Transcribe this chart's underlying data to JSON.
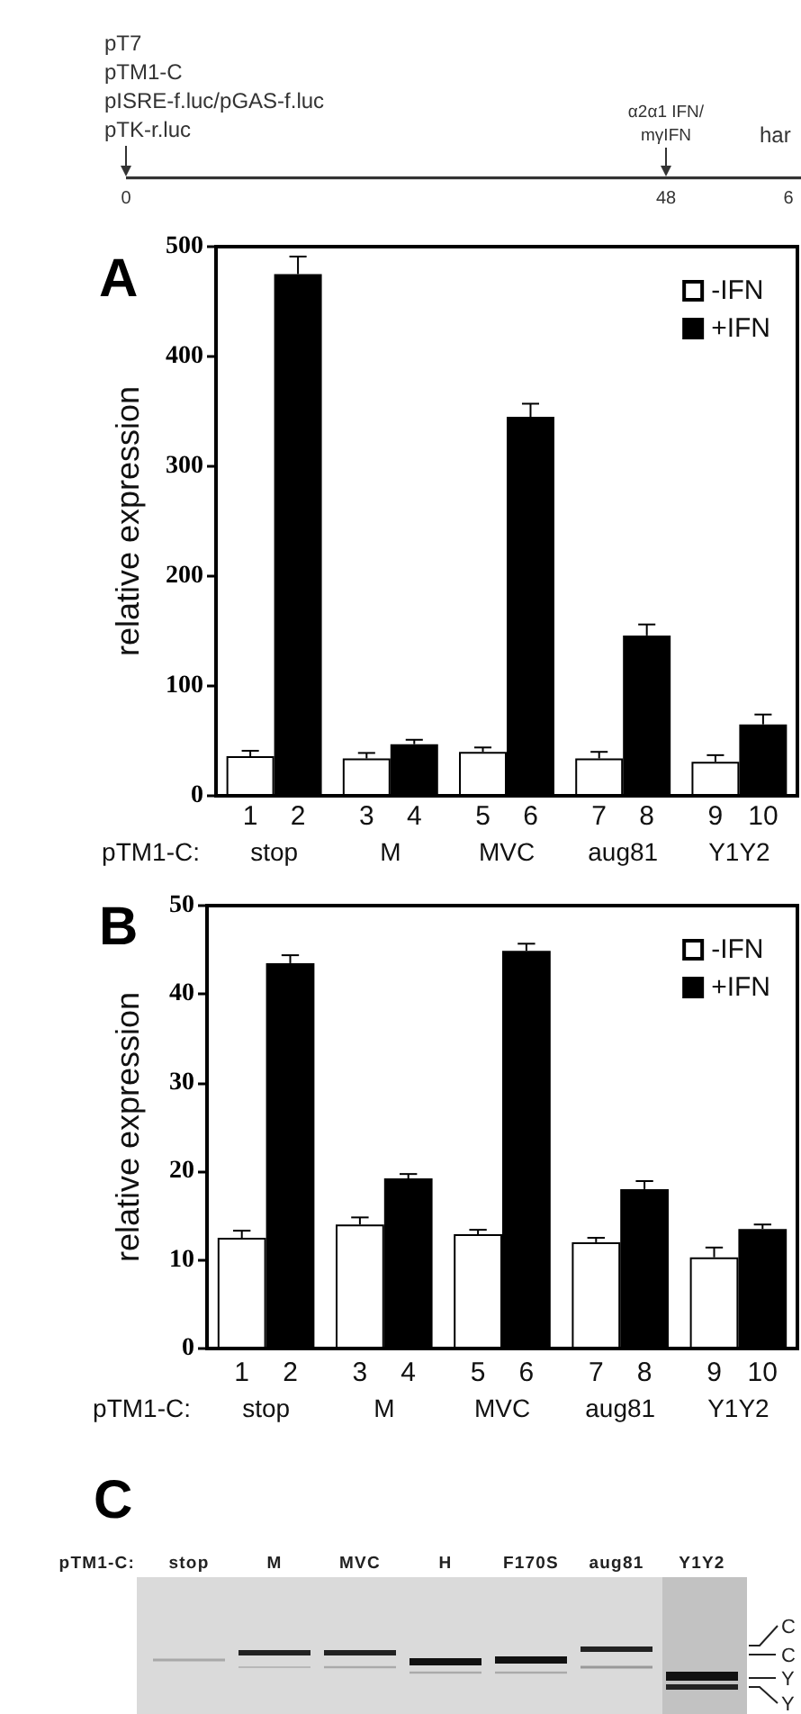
{
  "chart_data": [
    {
      "type": "other",
      "annotations": [
        "pT7",
        "pTM1-C",
        "pISRE-f.luc/pGAS-f.luc",
        "pTK-r.luc",
        "α2α1 IFN/",
        "mγIFN",
        "har",
        "0",
        "48",
        "6"
      ]
    },
    {
      "type": "bar",
      "title": "A",
      "ylabel": "relative expression",
      "xlabel": "pTM1-C:",
      "categories": [
        "stop",
        "M",
        "MVC",
        "aug81",
        "Y1Y2"
      ],
      "series": [
        {
          "name": "-IFN",
          "color": "#ffffff",
          "values": [
            36,
            34,
            40,
            34,
            31
          ],
          "errors": [
            [
              36,
              41
            ],
            [
              34,
              39
            ],
            [
              40,
              44
            ],
            [
              34,
              40
            ],
            [
              31,
              37
            ]
          ]
        },
        {
          "name": "+IFN",
          "color": "#000000",
          "values": [
            475,
            47,
            345,
            146,
            65
          ],
          "errors": [
            [
              475,
              491
            ],
            [
              47,
              51
            ],
            [
              345,
              357
            ],
            [
              146,
              156
            ],
            [
              65,
              74
            ]
          ]
        }
      ],
      "ylim": [
        0,
        500
      ],
      "yticks": [
        0,
        100,
        200,
        300,
        400,
        500
      ],
      "legend": "top right",
      "annotations": [
        "1",
        "2",
        "3",
        "4",
        "5",
        "6",
        "7",
        "8",
        "9",
        "10"
      ]
    },
    {
      "type": "bar",
      "title": "B",
      "ylabel": "relative expression",
      "xlabel": "pTM1-C:",
      "categories": [
        "stop",
        "M",
        "MVC",
        "aug81",
        "Y1Y2"
      ],
      "series": [
        {
          "name": "-IFN",
          "color": "#ffffff",
          "values": [
            12.5,
            14,
            12.9,
            12,
            10.3
          ],
          "errors": [
            [
              12.5,
              13.3
            ],
            [
              14,
              14.8
            ],
            [
              12.9,
              13.4
            ],
            [
              12,
              12.5
            ],
            [
              10.3,
              11.4
            ]
          ]
        },
        {
          "name": "+IFN",
          "color": "#000000",
          "values": [
            43.5,
            19.2,
            44.9,
            18,
            13.5
          ],
          "errors": [
            [
              43.5,
              44.4
            ],
            [
              19.2,
              19.7
            ],
            [
              44.9,
              45.7
            ],
            [
              18,
              18.9
            ],
            [
              13.5,
              14
            ]
          ]
        }
      ],
      "ylim": [
        0,
        50
      ],
      "yticks": [
        0,
        10,
        20,
        30,
        40,
        50
      ],
      "legend": "top right",
      "annotations": [
        "1",
        "2",
        "3",
        "4",
        "5",
        "6",
        "7",
        "8",
        "9",
        "10"
      ]
    },
    {
      "type": "other",
      "title": "C",
      "xlabel": "pTM1-C:",
      "categories": [
        "stop",
        "M",
        "MVC",
        "H",
        "F170S",
        "aug81",
        "Y1Y2"
      ],
      "annotations": [
        "C",
        "C",
        "Y",
        "Y"
      ]
    }
  ]
}
